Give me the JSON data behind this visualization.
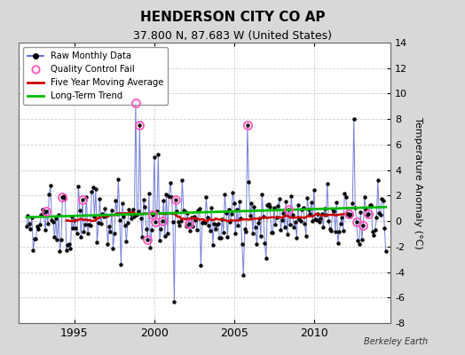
{
  "title": "HENDERSON CITY CO AP",
  "subtitle": "37.800 N, 87.683 W (United States)",
  "ylabel": "Temperature Anomaly (°C)",
  "watermark": "Berkeley Earth",
  "ylim": [
    -8,
    14
  ],
  "yticks": [
    -8,
    -6,
    -4,
    -2,
    0,
    2,
    4,
    6,
    8,
    10,
    12,
    14
  ],
  "xlim_start": 1991.5,
  "xlim_end": 2014.8,
  "raw_color": "#4455cc",
  "raw_alpha": 0.75,
  "marker_color": "#000000",
  "qc_color": "#ff55bb",
  "moving_avg_color": "#cc0000",
  "trend_color": "#00bb00",
  "fig_bg_color": "#d8d8d8",
  "plot_bg": "#ffffff",
  "legend_labels": [
    "Raw Monthly Data",
    "Quality Control Fail",
    "Five Year Moving Average",
    "Long-Term Trend"
  ],
  "xticks": [
    1995,
    2000,
    2005,
    2010
  ],
  "xtick_labels": [
    "1995",
    "2000",
    "2005",
    "2010"
  ]
}
